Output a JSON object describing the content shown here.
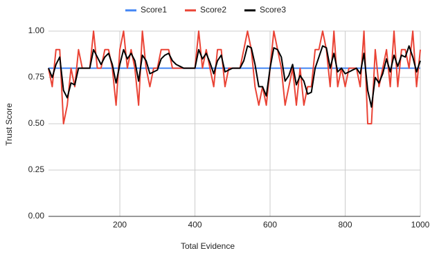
{
  "chart_data": {
    "type": "line",
    "x_label": "Total Evidence",
    "y_label": "Trust Score",
    "x": [
      10,
      20,
      30,
      40,
      50,
      60,
      70,
      80,
      90,
      100,
      110,
      120,
      130,
      140,
      150,
      160,
      170,
      180,
      190,
      200,
      210,
      220,
      230,
      240,
      250,
      260,
      270,
      280,
      290,
      300,
      310,
      320,
      330,
      340,
      350,
      360,
      370,
      380,
      390,
      400,
      410,
      420,
      430,
      440,
      450,
      460,
      470,
      480,
      490,
      500,
      510,
      520,
      530,
      540,
      550,
      560,
      570,
      580,
      590,
      600,
      610,
      620,
      630,
      640,
      650,
      660,
      670,
      680,
      690,
      700,
      710,
      720,
      730,
      740,
      750,
      760,
      770,
      780,
      790,
      800,
      810,
      820,
      830,
      840,
      850,
      860,
      870,
      880,
      890,
      900,
      910,
      920,
      930,
      940,
      950,
      960,
      970,
      980,
      990,
      1000
    ],
    "series": [
      {
        "name": "Score1",
        "color": "#4285f4",
        "values": [
          0.8,
          0.8,
          0.8,
          0.8,
          0.8,
          0.8,
          0.8,
          0.8,
          0.8,
          0.8,
          0.8,
          0.8,
          0.8,
          0.8,
          0.8,
          0.8,
          0.8,
          0.8,
          0.8,
          0.8,
          0.8,
          0.8,
          0.8,
          0.8,
          0.8,
          0.8,
          0.8,
          0.8,
          0.8,
          0.8,
          0.8,
          0.8,
          0.8,
          0.8,
          0.8,
          0.8,
          0.8,
          0.8,
          0.8,
          0.8,
          0.8,
          0.8,
          0.8,
          0.8,
          0.8,
          0.8,
          0.8,
          0.8,
          0.8,
          0.8,
          0.8,
          0.8,
          0.8,
          0.8,
          0.8,
          0.8,
          0.8,
          0.8,
          0.8,
          0.8,
          0.8,
          0.8,
          0.8,
          0.8,
          0.8,
          0.8,
          0.8,
          0.8,
          0.8,
          0.8,
          0.8,
          0.8,
          0.8,
          0.8,
          0.8,
          0.8,
          0.8,
          0.8,
          0.8,
          0.8,
          0.8,
          0.8,
          0.8,
          0.8,
          0.8,
          0.8,
          0.8,
          0.8,
          0.8,
          0.8,
          0.8,
          0.8,
          0.8,
          0.8,
          0.8,
          0.8,
          0.8,
          0.8,
          0.8,
          0.8
        ]
      },
      {
        "name": "Score2",
        "color": "#ea4335",
        "values": [
          0.8,
          0.7,
          0.9,
          0.9,
          0.5,
          0.6,
          0.8,
          0.7,
          0.9,
          0.8,
          0.8,
          0.8,
          1.0,
          0.8,
          0.8,
          0.9,
          0.9,
          0.8,
          0.6,
          0.9,
          1.0,
          0.8,
          0.9,
          0.8,
          0.6,
          1.0,
          0.8,
          0.7,
          0.8,
          0.8,
          0.9,
          0.9,
          0.9,
          0.8,
          0.8,
          0.8,
          0.8,
          0.8,
          0.8,
          0.8,
          1.0,
          0.8,
          0.9,
          0.8,
          0.7,
          0.9,
          0.9,
          0.7,
          0.8,
          0.8,
          0.8,
          0.8,
          0.9,
          1.0,
          0.9,
          0.7,
          0.6,
          0.7,
          0.6,
          0.8,
          1.0,
          0.9,
          0.8,
          0.6,
          0.7,
          0.8,
          0.6,
          0.8,
          0.6,
          0.7,
          0.7,
          0.9,
          0.9,
          1.0,
          0.9,
          0.7,
          1.0,
          0.7,
          0.8,
          0.7,
          0.8,
          0.8,
          0.8,
          0.7,
          1.0,
          0.5,
          0.5,
          0.9,
          0.7,
          0.8,
          0.9,
          0.7,
          1.0,
          0.7,
          0.9,
          0.9,
          0.8,
          1.0,
          0.7,
          0.9
        ]
      },
      {
        "name": "Score3",
        "color": "#000000",
        "values": [
          0.8,
          0.75,
          0.82,
          0.86,
          0.68,
          0.64,
          0.72,
          0.71,
          0.8,
          0.8,
          0.8,
          0.8,
          0.9,
          0.86,
          0.82,
          0.86,
          0.88,
          0.82,
          0.72,
          0.82,
          0.9,
          0.85,
          0.88,
          0.84,
          0.73,
          0.87,
          0.84,
          0.77,
          0.78,
          0.79,
          0.85,
          0.87,
          0.88,
          0.84,
          0.82,
          0.81,
          0.8,
          0.8,
          0.8,
          0.8,
          0.9,
          0.85,
          0.88,
          0.83,
          0.77,
          0.84,
          0.87,
          0.78,
          0.79,
          0.8,
          0.8,
          0.8,
          0.84,
          0.92,
          0.91,
          0.82,
          0.7,
          0.7,
          0.65,
          0.8,
          0.91,
          0.9,
          0.86,
          0.73,
          0.76,
          0.82,
          0.71,
          0.76,
          0.73,
          0.66,
          0.67,
          0.8,
          0.86,
          0.92,
          0.91,
          0.8,
          0.88,
          0.78,
          0.8,
          0.77,
          0.78,
          0.79,
          0.8,
          0.77,
          0.88,
          0.68,
          0.59,
          0.75,
          0.72,
          0.77,
          0.85,
          0.78,
          0.87,
          0.81,
          0.87,
          0.86,
          0.92,
          0.86,
          0.78,
          0.84
        ]
      }
    ],
    "xlim": [
      10,
      1000
    ],
    "ylim": [
      0,
      1
    ],
    "xticks": [
      200,
      400,
      600,
      800,
      1000
    ],
    "yticks": [
      {
        "value": 0,
        "label": "0.00"
      },
      {
        "value": 0.25,
        "label": "0.25"
      },
      {
        "value": 0.5,
        "label": "0.50"
      },
      {
        "value": 0.75,
        "label": "0.75"
      },
      {
        "value": 1,
        "label": "1.00"
      }
    ],
    "grid": true,
    "legend": "top"
  }
}
